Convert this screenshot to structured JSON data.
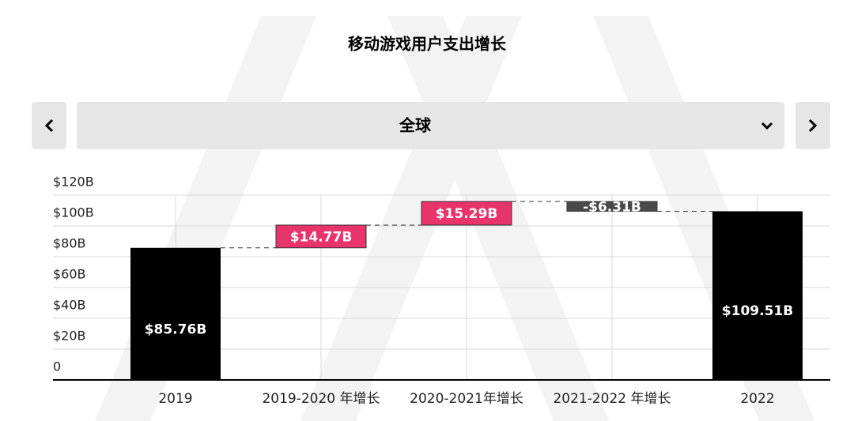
{
  "selector": {
    "label": "全球"
  },
  "chart_data": {
    "type": "waterfall",
    "title": "移动游戏用户支出增长",
    "categories": [
      "2019",
      "2019-2020 年增长",
      "2020-2021年增长",
      "2021-2022 年增长",
      "2022"
    ],
    "values": [
      85.76,
      14.77,
      15.29,
      -6.31,
      109.51
    ],
    "value_labels": [
      "$85.76B",
      "$14.77B",
      "$15.29B",
      "-$6.31B",
      "$109.51B"
    ],
    "measure": [
      "absolute",
      "relative",
      "relative",
      "relative",
      "total"
    ],
    "colors": {
      "total": "#000000",
      "increase": "#e8336b",
      "decrease": "#4a4a4a"
    },
    "ylim": [
      0,
      120
    ],
    "yticks": [
      0,
      {
        "value": 20,
        "label": "$20B"
      },
      {
        "value": 40,
        "label": "$40B"
      },
      {
        "value": 60,
        "label": "$60B"
      },
      {
        "value": 80,
        "label": "$80B"
      },
      {
        "value": 100,
        "label": "$100B"
      },
      {
        "value": 120,
        "label": "$120B"
      }
    ],
    "grid": true
  }
}
